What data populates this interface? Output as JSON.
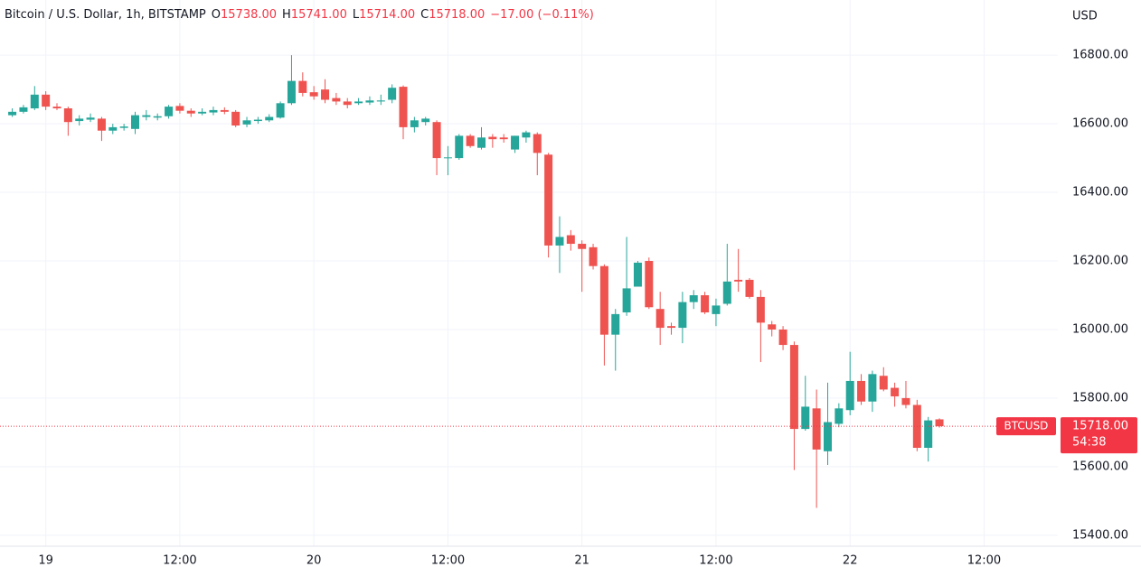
{
  "chart_data": {
    "type": "candlestick",
    "title": "Bitcoin / U.S. Dollar, 1h, BITSTAMP",
    "ohlc_header": [
      {
        "label": "O",
        "value": "15738.00"
      },
      {
        "label": "H",
        "value": "15741.00"
      },
      {
        "label": "L",
        "value": "15714.00"
      },
      {
        "label": "C",
        "value": "15718.00"
      }
    ],
    "change": "−17.00 (−0.11%)",
    "y_axis_label": "USD",
    "up_color": "#26a69a",
    "down_color": "#ef5350",
    "grid": true,
    "xlim": [
      -1.1,
      93.6
    ],
    "xticks": [
      {
        "value": 3,
        "label": "19"
      },
      {
        "value": 15,
        "label": "12:00"
      },
      {
        "value": 27,
        "label": "20"
      },
      {
        "value": 39,
        "label": "12:00"
      },
      {
        "value": 51,
        "label": "21"
      },
      {
        "value": 63,
        "label": "12:00"
      },
      {
        "value": 75,
        "label": "22"
      },
      {
        "value": 87,
        "label": "12:00"
      }
    ],
    "ylim": [
      15368,
      16961
    ],
    "yticks": [
      {
        "value": 15400,
        "label": "15400.00"
      },
      {
        "value": 15600,
        "label": "15600.00"
      },
      {
        "value": 15800,
        "label": "15800.00"
      },
      {
        "value": 16000,
        "label": "16000.00"
      },
      {
        "value": 16200,
        "label": "16200.00"
      },
      {
        "value": 16400,
        "label": "16400.00"
      },
      {
        "value": 16600,
        "label": "16600.00"
      },
      {
        "value": 16800,
        "label": "16800.00"
      }
    ],
    "open": [
      16625,
      16635,
      16645,
      16685,
      16650,
      16645,
      16608,
      16612,
      16615,
      16580,
      16588,
      16585,
      16620,
      16618,
      16622,
      16652,
      16638,
      16630,
      16633,
      16640,
      16635,
      16598,
      16608,
      16610,
      16618,
      16660,
      16725,
      16692,
      16700,
      16675,
      16665,
      16660,
      16662,
      16665,
      16670,
      16708,
      16590,
      16605,
      16605,
      16500,
      16500,
      16565,
      16530,
      16562,
      16560,
      16525,
      16560,
      16570,
      16510,
      16245,
      16275,
      16250,
      16240,
      16185,
      15985,
      16050,
      16125,
      16200,
      16060,
      16010,
      16005,
      16080,
      16100,
      16045,
      16075,
      16145,
      16145,
      16095,
      16015,
      16000,
      15955,
      15710,
      15770,
      15645,
      15725,
      15765,
      15850,
      15790,
      15865,
      15830,
      15800,
      15780,
      15655,
      15738
    ],
    "high": [
      16645,
      16655,
      16710,
      16695,
      16660,
      16650,
      16625,
      16630,
      16620,
      16600,
      16600,
      16635,
      16640,
      16630,
      16655,
      16660,
      16645,
      16645,
      16650,
      16648,
      16640,
      16620,
      16620,
      16628,
      16665,
      16800,
      16750,
      16710,
      16730,
      16690,
      16675,
      16675,
      16680,
      16685,
      16715,
      16712,
      16620,
      16620,
      16610,
      16535,
      16570,
      16570,
      16590,
      16570,
      16570,
      16565,
      16580,
      16575,
      16515,
      16330,
      16290,
      16260,
      16250,
      16190,
      16060,
      16270,
      16200,
      16210,
      16110,
      16020,
      16110,
      16115,
      16110,
      16090,
      16250,
      16235,
      16150,
      16115,
      16025,
      16010,
      15965,
      15865,
      15825,
      15845,
      15785,
      15935,
      15870,
      15880,
      15890,
      15845,
      15850,
      15795,
      15745,
      15741
    ],
    "low": [
      16620,
      16630,
      16640,
      16640,
      16640,
      16565,
      16595,
      16605,
      16550,
      16570,
      16580,
      16570,
      16610,
      16610,
      16615,
      16630,
      16620,
      16625,
      16625,
      16628,
      16590,
      16590,
      16600,
      16605,
      16615,
      16655,
      16680,
      16670,
      16660,
      16655,
      16645,
      16655,
      16655,
      16655,
      16660,
      16555,
      16575,
      16595,
      16450,
      16450,
      16495,
      16530,
      16525,
      16530,
      16545,
      16515,
      16545,
      16450,
      16210,
      16165,
      16230,
      16110,
      16175,
      15895,
      15880,
      16040,
      16125,
      16060,
      15955,
      15985,
      15960,
      16060,
      16045,
      16010,
      16070,
      16110,
      16090,
      15905,
      15980,
      15940,
      15590,
      15705,
      15480,
      15605,
      15715,
      15750,
      15780,
      15760,
      15820,
      15775,
      15770,
      15645,
      15615,
      15714
    ],
    "close": [
      16635,
      16648,
      16685,
      16650,
      16645,
      16605,
      16615,
      16618,
      16580,
      16590,
      16592,
      16625,
      16625,
      16622,
      16650,
      16638,
      16630,
      16635,
      16640,
      16635,
      16595,
      16610,
      16612,
      16620,
      16660,
      16725,
      16690,
      16680,
      16670,
      16665,
      16655,
      16665,
      16668,
      16668,
      16705,
      16590,
      16610,
      16615,
      16500,
      16502,
      16565,
      16535,
      16560,
      16555,
      16555,
      16565,
      16575,
      16515,
      16245,
      16270,
      16250,
      16235,
      16185,
      15985,
      16045,
      16120,
      16195,
      16065,
      16005,
      16005,
      16080,
      16100,
      16050,
      16070,
      16140,
      16140,
      16095,
      16020,
      16000,
      15955,
      15710,
      15775,
      15650,
      15730,
      15770,
      15850,
      15790,
      15870,
      15825,
      15805,
      15780,
      15655,
      15735,
      15718
    ],
    "last_price": {
      "value": 15718,
      "label": "15718.00",
      "countdown": "54:38",
      "symbol": "BTCUSD"
    }
  }
}
